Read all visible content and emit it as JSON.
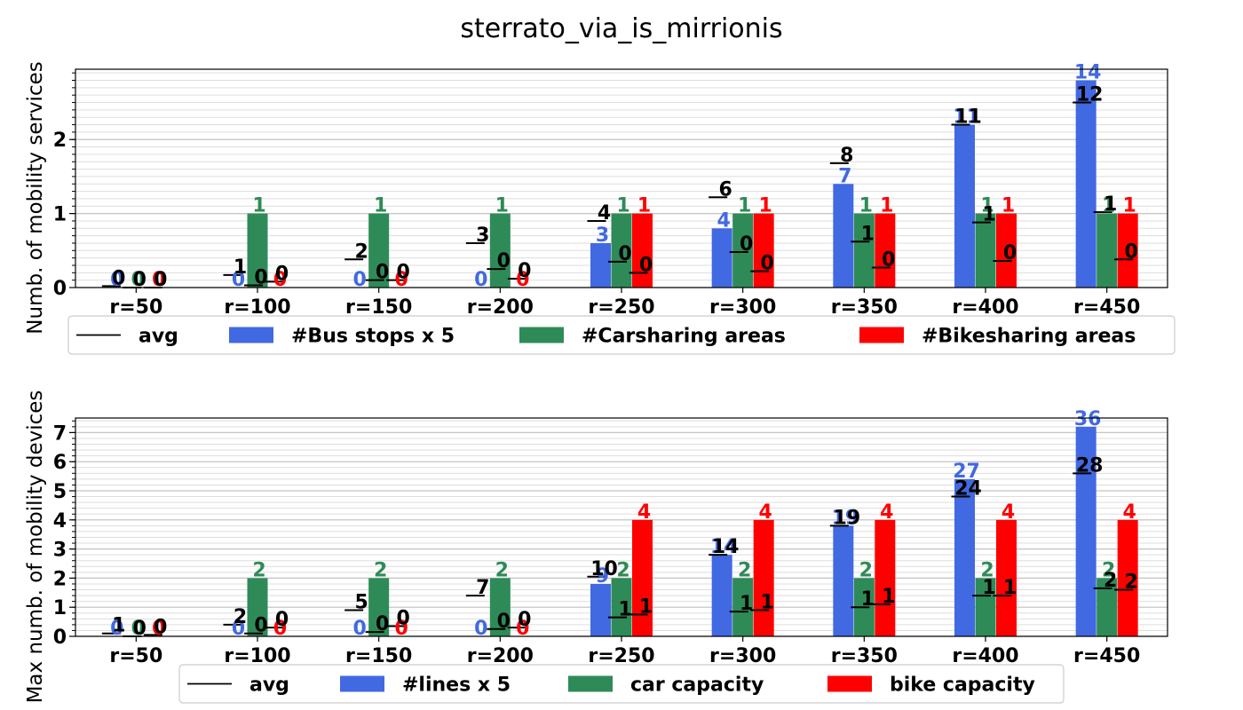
{
  "title": "sterrato_via_is_mirrionis",
  "colors": {
    "avg": "#000000",
    "series1": "#4169e1",
    "series2": "#2e8b57",
    "series3": "#ff0000"
  },
  "chart_data": [
    {
      "type": "bar",
      "ylabel": "Numb. of mobility services",
      "categories": [
        "r=50",
        "r=100",
        "r=150",
        "r=200",
        "r=250",
        "r=300",
        "r=350",
        "r=400",
        "r=450"
      ],
      "ylim": [
        0,
        2.95
      ],
      "yticks": [
        0,
        1,
        2
      ],
      "series": [
        {
          "name": "#Bus stops x 5",
          "values": [
            0,
            0,
            0,
            0,
            0.6,
            0.8,
            1.4,
            2.2,
            2.8
          ],
          "labels": [
            "0",
            "0",
            "0",
            "0",
            "3",
            "4",
            "7",
            "11",
            "14"
          ]
        },
        {
          "name": "#Carsharing areas",
          "values": [
            0,
            1,
            1,
            1,
            1,
            1,
            1,
            1,
            1
          ],
          "labels": [
            "0",
            "1",
            "1",
            "1",
            "1",
            "1",
            "1",
            "1",
            "1"
          ]
        },
        {
          "name": "#Bikesharing areas",
          "values": [
            0,
            0,
            0,
            0,
            1,
            1,
            1,
            1,
            1
          ],
          "labels": [
            "0",
            "0",
            "0",
            "0",
            "1",
            "1",
            "1",
            "1",
            "1"
          ]
        }
      ],
      "avg_name": "avg",
      "avg": [
        {
          "values": [
            0.02,
            0.17,
            0.38,
            0.6,
            0.9,
            1.22,
            1.68,
            2.2,
            2.5
          ],
          "labels": [
            "0",
            "1",
            "2",
            "3",
            "4",
            "6",
            "8",
            "11",
            "12"
          ]
        },
        {
          "values": [
            0.0,
            0.03,
            0.1,
            0.25,
            0.35,
            0.48,
            0.62,
            0.88,
            1.02
          ],
          "labels": [
            "0",
            "0",
            "0",
            "0",
            "0",
            "0",
            "1",
            "1",
            "1"
          ]
        },
        {
          "values": [
            0.0,
            0.08,
            0.1,
            0.12,
            0.2,
            0.22,
            0.27,
            0.36,
            0.38
          ],
          "labels": [
            "0",
            "0",
            "0",
            "0",
            "0",
            "0",
            "0",
            "0",
            "0"
          ]
        }
      ]
    },
    {
      "type": "bar",
      "ylabel": "Max numb. of mobility devices",
      "categories": [
        "r=50",
        "r=100",
        "r=150",
        "r=200",
        "r=250",
        "r=300",
        "r=350",
        "r=400",
        "r=450"
      ],
      "ylim": [
        0,
        7.5
      ],
      "yticks": [
        0,
        1,
        2,
        3,
        4,
        5,
        6,
        7
      ],
      "series": [
        {
          "name": "#lines x 5",
          "values": [
            0,
            0,
            0,
            0,
            1.8,
            2.8,
            3.8,
            5.4,
            7.2
          ],
          "labels": [
            "0",
            "0",
            "0",
            "0",
            "9",
            "14",
            "19",
            "27",
            "36"
          ]
        },
        {
          "name": "car capacity",
          "values": [
            0,
            2,
            2,
            2,
            2,
            2,
            2,
            2,
            2
          ],
          "labels": [
            "0",
            "2",
            "2",
            "2",
            "2",
            "2",
            "2",
            "2",
            "2"
          ]
        },
        {
          "name": "bike capacity",
          "values": [
            0,
            0,
            0,
            0,
            4,
            4,
            4,
            4,
            4
          ],
          "labels": [
            "0",
            "0",
            "0",
            "0",
            "4",
            "4",
            "4",
            "4",
            "4"
          ]
        }
      ],
      "avg_name": "avg",
      "avg": [
        {
          "values": [
            0.1,
            0.4,
            0.9,
            1.4,
            2.05,
            2.8,
            3.8,
            4.8,
            5.6
          ],
          "labels": [
            "1",
            "2",
            "5",
            "7",
            "10",
            "14",
            "19",
            "24",
            "28"
          ]
        },
        {
          "values": [
            0.0,
            0.1,
            0.15,
            0.25,
            0.65,
            0.85,
            1.0,
            1.4,
            1.65
          ],
          "labels": [
            "0",
            "0",
            "0",
            "0",
            "1",
            "1",
            "1",
            "1",
            "2"
          ]
        },
        {
          "values": [
            0.05,
            0.3,
            0.35,
            0.3,
            0.75,
            0.9,
            1.1,
            1.4,
            1.6
          ],
          "labels": [
            "0",
            "0",
            "0",
            "0",
            "1",
            "1",
            "1",
            "1",
            "2"
          ]
        }
      ]
    }
  ]
}
